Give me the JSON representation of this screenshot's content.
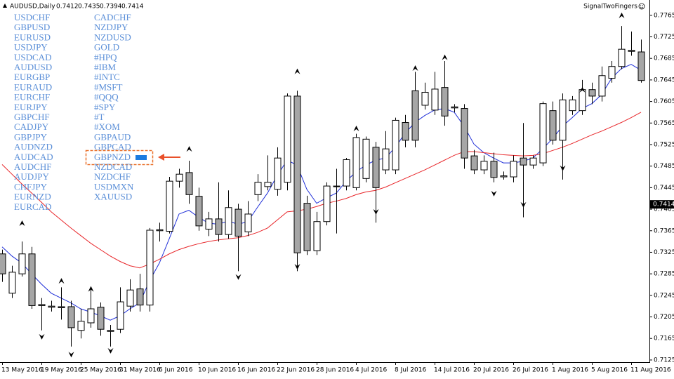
{
  "chart_data": {
    "type": "candlestick",
    "header": {
      "symbol": "AUDUSD,Daily",
      "ohlc": [
        0.7412,
        0.7435,
        0.7394,
        0.7414
      ],
      "indicator": "SignalTwoFingers"
    },
    "last_price": 0.7414,
    "ylim": [
      0.7121,
      0.7783
    ],
    "yticks": [
      0.7765,
      0.7725,
      0.7685,
      0.7645,
      0.7605,
      0.7565,
      0.7525,
      0.7485,
      0.7445,
      0.7405,
      0.7365,
      0.7325,
      0.7285,
      0.7245,
      0.7205,
      0.7165,
      0.7125
    ],
    "up_color": "#ffffff",
    "down_color": "#a6a6a6",
    "categories": [
      "13 May 2016",
      null,
      null,
      null,
      "19 May 2016",
      null,
      null,
      null,
      "25 May 2016",
      null,
      null,
      null,
      "31 May 2016",
      null,
      null,
      null,
      "6 Jun 2016",
      null,
      null,
      null,
      "10 Jun 2016",
      null,
      null,
      null,
      "16 Jun 2016",
      null,
      null,
      null,
      "22 Jun 2016",
      null,
      null,
      null,
      "28 Jun 2016",
      null,
      null,
      null,
      "4 Jul 2016",
      null,
      null,
      null,
      "8 Jul 2016",
      null,
      null,
      null,
      "14 Jul 2016",
      null,
      null,
      null,
      "20 Jul 2016",
      null,
      null,
      null,
      "26 Jul 2016",
      null,
      null,
      null,
      "1 Aug 2016",
      null,
      null,
      null,
      "5 Aug 2016",
      null,
      null,
      null,
      "11 Aug 2016",
      null
    ],
    "candles": {
      "open": [
        0.7322,
        0.7249,
        0.7285,
        0.7322,
        0.7228,
        0.7225,
        0.7224,
        0.7224,
        0.718,
        0.7194,
        0.7223,
        0.718,
        0.7182,
        0.7225,
        0.7257,
        0.7227,
        0.7367,
        0.7364,
        0.7457,
        0.7473,
        0.7429,
        0.7368,
        0.7387,
        0.7358,
        0.7405,
        0.7363,
        0.7432,
        0.7447,
        0.7442,
        0.7455,
        0.7615,
        0.7416,
        0.7328,
        0.7382,
        0.7448,
        0.7448,
        0.7445,
        0.7462,
        0.752,
        0.7478,
        0.7478,
        0.7566,
        0.7625,
        0.7598,
        0.7589,
        0.7631,
        0.7595,
        0.7592,
        0.7504,
        0.7478,
        0.7494,
        0.7467,
        0.7465,
        0.75,
        0.7487,
        0.7491,
        0.7588,
        0.7533,
        0.7588,
        0.7588,
        0.7627,
        0.7615,
        0.7648,
        0.767,
        0.77,
        0.7697
      ],
      "high": [
        0.733,
        0.73,
        0.7345,
        0.7335,
        0.724,
        0.7235,
        0.726,
        0.7235,
        0.722,
        0.7255,
        0.7232,
        0.719,
        0.726,
        0.7275,
        0.7285,
        0.737,
        0.738,
        0.7465,
        0.748,
        0.7495,
        0.7445,
        0.74,
        0.7455,
        0.744,
        0.7415,
        0.742,
        0.747,
        0.7505,
        0.752,
        0.762,
        0.7625,
        0.743,
        0.74,
        0.7455,
        0.748,
        0.75,
        0.7545,
        0.754,
        0.753,
        0.755,
        0.7575,
        0.758,
        0.766,
        0.764,
        0.766,
        0.768,
        0.76,
        0.76,
        0.7515,
        0.7505,
        0.751,
        0.7475,
        0.7505,
        0.7565,
        0.7505,
        0.7605,
        0.7605,
        0.762,
        0.7615,
        0.7645,
        0.764,
        0.767,
        0.768,
        0.7745,
        0.7735,
        0.772
      ],
      "low": [
        0.727,
        0.724,
        0.728,
        0.722,
        0.718,
        0.7215,
        0.72,
        0.715,
        0.7165,
        0.7185,
        0.717,
        0.715,
        0.7175,
        0.7215,
        0.7215,
        0.7215,
        0.7345,
        0.736,
        0.7445,
        0.7415,
        0.7365,
        0.7355,
        0.7345,
        0.735,
        0.729,
        0.7355,
        0.742,
        0.744,
        0.743,
        0.744,
        0.729,
        0.732,
        0.732,
        0.7375,
        0.736,
        0.744,
        0.744,
        0.7455,
        0.738,
        0.747,
        0.747,
        0.752,
        0.752,
        0.759,
        0.758,
        0.756,
        0.7585,
        0.748,
        0.747,
        0.747,
        0.7455,
        0.746,
        0.7455,
        0.739,
        0.748,
        0.7485,
        0.7525,
        0.746,
        0.758,
        0.758,
        0.76,
        0.7605,
        0.764,
        0.7665,
        0.769,
        0.764
      ],
      "close": [
        0.7285,
        0.7288,
        0.7322,
        0.7226,
        0.7226,
        0.7223,
        0.7222,
        0.7185,
        0.7197,
        0.722,
        0.7182,
        0.7178,
        0.7233,
        0.7255,
        0.7227,
        0.7366,
        0.7365,
        0.7457,
        0.747,
        0.7432,
        0.7374,
        0.7387,
        0.7358,
        0.7408,
        0.7355,
        0.7396,
        0.7455,
        0.7455,
        0.75,
        0.7615,
        0.7324,
        0.7328,
        0.7382,
        0.7448,
        0.7447,
        0.7497,
        0.7538,
        0.7535,
        0.7445,
        0.7517,
        0.757,
        0.7533,
        0.7533,
        0.7622,
        0.7628,
        0.7578,
        0.7593,
        0.75,
        0.7478,
        0.7494,
        0.7464,
        0.7465,
        0.7494,
        0.7487,
        0.75,
        0.7601,
        0.7533,
        0.7608,
        0.7608,
        0.7627,
        0.7615,
        0.7653,
        0.767,
        0.7702,
        0.7698,
        0.7644
      ]
    },
    "series": [
      {
        "color": "#1f2fd8",
        "values": [
          0.7335,
          0.7318,
          0.7305,
          0.7285,
          0.7266,
          0.7249,
          0.724,
          0.7231,
          0.722,
          0.7214,
          0.7207,
          0.7199,
          0.7207,
          0.722,
          0.7231,
          0.7272,
          0.7305,
          0.735,
          0.7396,
          0.7403,
          0.739,
          0.7379,
          0.7377,
          0.7383,
          0.7377,
          0.7382,
          0.7409,
          0.7435,
          0.7468,
          0.7496,
          0.7487,
          0.7442,
          0.7416,
          0.7426,
          0.7435,
          0.7457,
          0.7474,
          0.7487,
          0.7496,
          0.75,
          0.752,
          0.7546,
          0.7566,
          0.7579,
          0.7589,
          0.7592,
          0.7585,
          0.7559,
          0.7526,
          0.751,
          0.75,
          0.7491,
          0.7491,
          0.7494,
          0.75,
          0.7517,
          0.7536,
          0.7559,
          0.7575,
          0.7592,
          0.7601,
          0.7618,
          0.7648,
          0.7666,
          0.7674,
          0.7663
        ]
      },
      {
        "color": "#e8262a",
        "values": [
          0.7488,
          0.747,
          0.7452,
          0.7435,
          0.7418,
          0.74,
          0.7385,
          0.737,
          0.7356,
          0.7342,
          0.733,
          0.7318,
          0.7308,
          0.73,
          0.7296,
          0.7303,
          0.7312,
          0.7322,
          0.733,
          0.7336,
          0.7341,
          0.7345,
          0.7348,
          0.735,
          0.7352,
          0.7356,
          0.7362,
          0.737,
          0.7385,
          0.74,
          0.7402,
          0.7405,
          0.741,
          0.7416,
          0.742,
          0.7425,
          0.7432,
          0.7437,
          0.744,
          0.7446,
          0.7454,
          0.7462,
          0.747,
          0.7478,
          0.7487,
          0.7496,
          0.7505,
          0.7512,
          0.7512,
          0.751,
          0.7508,
          0.7506,
          0.7505,
          0.7504,
          0.7505,
          0.7508,
          0.7514,
          0.752,
          0.7527,
          0.7535,
          0.7543,
          0.755,
          0.7558,
          0.7566,
          0.7575,
          0.7585
        ]
      }
    ],
    "fractal_up": [
      null,
      null,
      0.7379,
      null,
      null,
      null,
      0.7272,
      null,
      null,
      0.7257,
      null,
      null,
      null,
      null,
      null,
      null,
      null,
      null,
      null,
      0.7517,
      null,
      null,
      null,
      null,
      null,
      null,
      null,
      null,
      null,
      null,
      0.7661,
      null,
      null,
      null,
      null,
      null,
      0.7555,
      null,
      null,
      null,
      null,
      null,
      0.7667,
      null,
      null,
      0.7687,
      null,
      null,
      null,
      null,
      null,
      null,
      null,
      null,
      null,
      null,
      null,
      null,
      null,
      0.7627,
      null,
      null,
      null,
      0.7765,
      null,
      null
    ],
    "fractal_down": [
      null,
      null,
      null,
      null,
      0.7168,
      null,
      null,
      0.7135,
      null,
      null,
      null,
      0.7142,
      null,
      null,
      null,
      null,
      null,
      null,
      null,
      null,
      null,
      null,
      null,
      null,
      0.7279,
      null,
      null,
      null,
      null,
      null,
      0.7298,
      null,
      null,
      null,
      null,
      null,
      null,
      null,
      0.74,
      null,
      null,
      null,
      null,
      null,
      null,
      null,
      null,
      null,
      null,
      null,
      0.7434,
      null,
      null,
      0.7413,
      null,
      null,
      null,
      0.7481,
      null,
      null,
      null,
      null,
      null,
      null,
      null,
      null
    ],
    "symbols_left": [
      "USDCHF",
      "GBPUSD",
      "EURUSD",
      "USDJPY",
      "USDCAD",
      "AUDUSD",
      "EURGBP",
      "EURAUD",
      "EURCHF",
      "EURJPY",
      "GBPCHF",
      "CADJPY",
      "GBPJPY",
      "AUDNZD",
      "AUDCAD",
      "AUDCHF",
      "AUDJPY",
      "CHFJPY",
      "EURNZD",
      "EURCAD"
    ],
    "symbols_right": [
      "CADCHF",
      "NZDJPY",
      "NZDUSD",
      "GOLD",
      "#HPQ",
      "#IBM",
      "#INTC",
      "#MSFT",
      "#QQQ",
      "#SPY",
      "#T",
      "#XOM",
      "GBPAUD",
      "GBPCAD",
      "GBPNZD",
      "NZDCAD",
      "NZDCHF",
      "USDMXN",
      "XAUUSD"
    ]
  }
}
